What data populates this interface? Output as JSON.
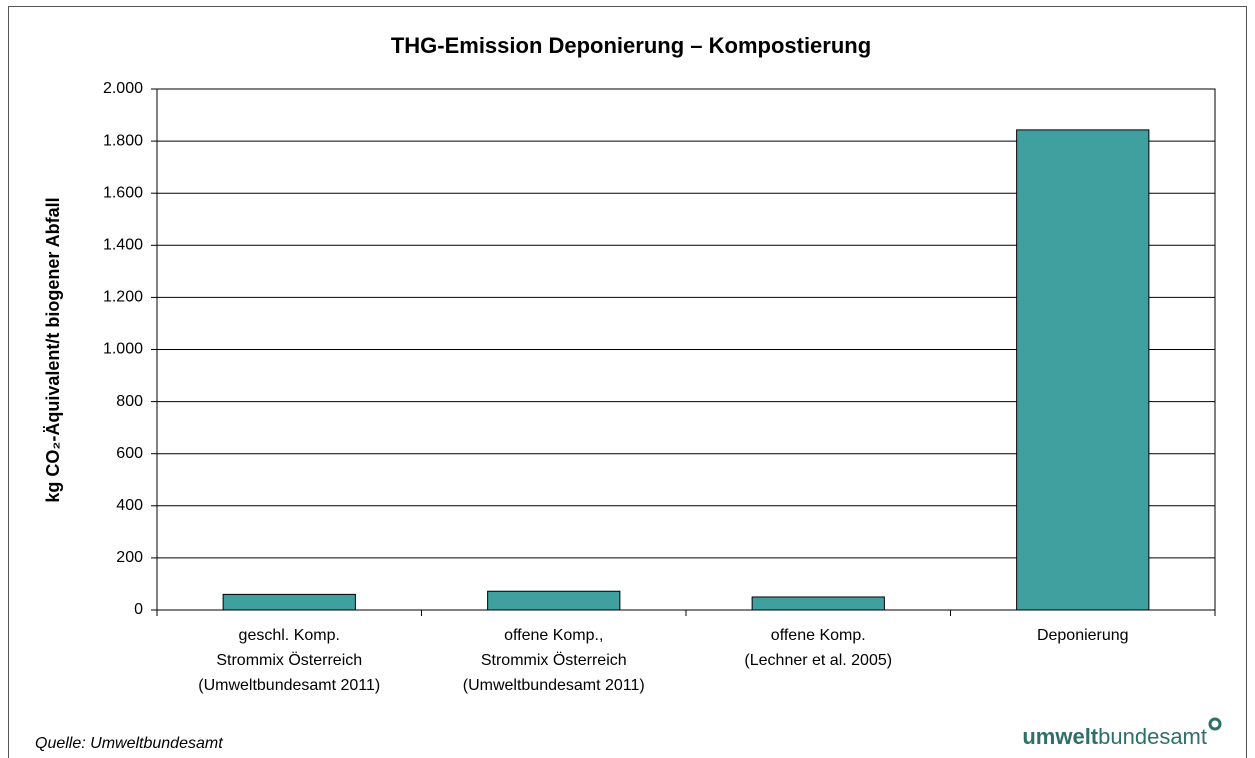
{
  "chart_data": {
    "type": "bar",
    "title": "THG-Emission Deponierung – Kompostierung",
    "y_label": "kg CO₂-Äquivalent/t biogener Abfall",
    "categories": [
      [
        "geschl. Komp.",
        "Strommix Österreich",
        "(Umweltbundesamt 2011)"
      ],
      [
        "offene Komp.,",
        "Strommix Österreich",
        "(Umweltbundesamt 2011)"
      ],
      [
        "offene Komp.",
        "(Lechner et al. 2005)"
      ],
      [
        "Deponierung"
      ]
    ],
    "values": [
      60,
      72,
      50,
      1843
    ],
    "color": "#40a09f",
    "ylim": [
      0,
      2000
    ],
    "yticks": [
      0,
      200,
      400,
      600,
      800,
      {
        "value": 1000,
        "label": "1.000"
      },
      {
        "value": 1200,
        "label": "1.200"
      },
      {
        "value": 1400,
        "label": "1.400"
      },
      {
        "value": 1600,
        "label": "1.600"
      },
      {
        "value": 1800,
        "label": "1.800"
      },
      {
        "value": 2000,
        "label": "2.000"
      }
    ],
    "grid": true,
    "source": "Quelle: Umweltbundesamt",
    "logo": [
      "umwelt",
      "bundesamt"
    ]
  }
}
